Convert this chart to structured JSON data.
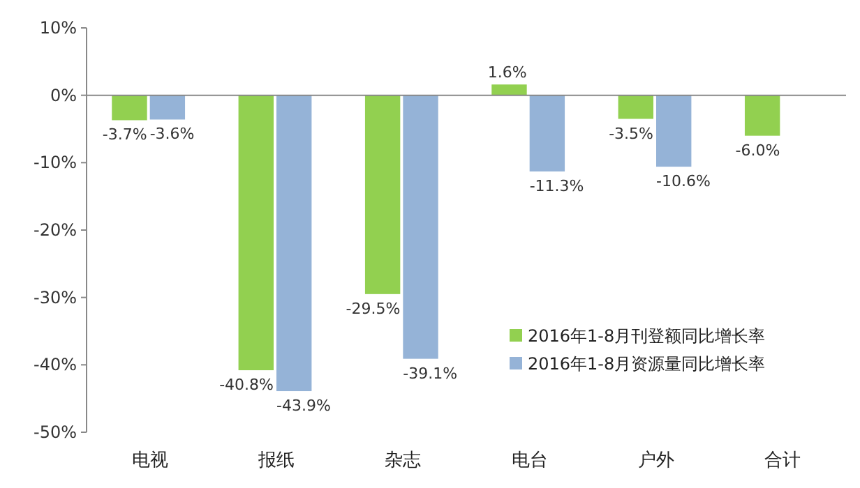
{
  "chart_data": {
    "type": "bar",
    "categories": [
      "电视",
      "报纸",
      "杂志",
      "电台",
      "户外",
      "合计"
    ],
    "series": [
      {
        "name": "2016年1-8月刊登额同比增长率",
        "color": "#92d050",
        "values": [
          -3.7,
          -40.8,
          -29.5,
          1.6,
          -3.5,
          -6.0
        ],
        "value_labels": [
          "-3.7%",
          "-40.8%",
          "-29.5%",
          "1.6%",
          "-3.5%",
          "-6.0%"
        ]
      },
      {
        "name": "2016年1-8月资源量同比增长率",
        "color": "#95b3d7",
        "values": [
          -3.6,
          -43.9,
          -39.1,
          -11.3,
          -10.6,
          null
        ],
        "value_labels": [
          "-3.6%",
          "-43.9%",
          "-39.1%",
          "-11.3%",
          "-10.6%",
          null
        ]
      }
    ],
    "ylim": [
      -50,
      10
    ],
    "yticks": [
      {
        "value": 10,
        "label": "10%"
      },
      {
        "value": 0,
        "label": "0%"
      },
      {
        "value": -10,
        "label": "-10%"
      },
      {
        "value": -20,
        "label": "-20%"
      },
      {
        "value": -30,
        "label": "-30%"
      },
      {
        "value": -40,
        "label": "-40%"
      },
      {
        "value": -50,
        "label": "-50%"
      }
    ],
    "legend": "bottom right"
  }
}
